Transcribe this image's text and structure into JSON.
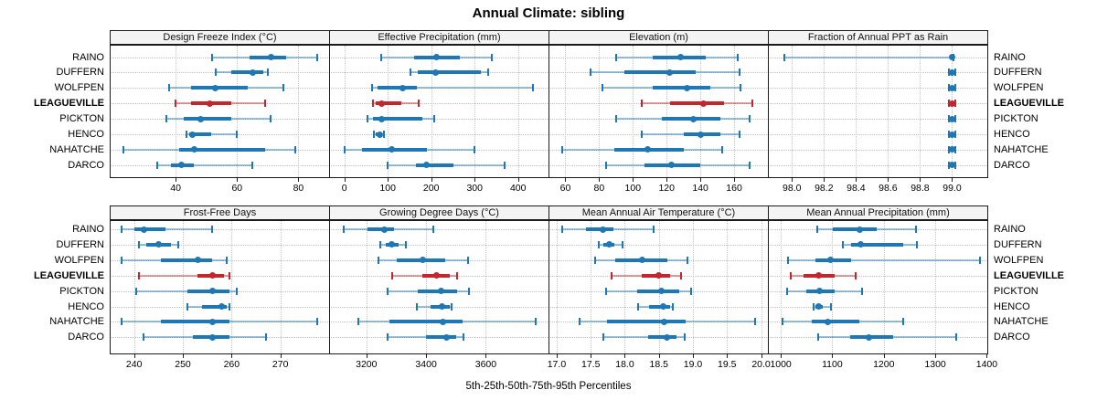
{
  "title": "Annual Climate: sibling",
  "xlabel": "5th-25th-50th-75th-95th Percentiles",
  "chart_data": {
    "type": "dotplot",
    "subtype": "trellis-percentile-whisker-plot",
    "title": "Annual Climate: sibling",
    "xlabel": "5th-25th-50th-75th-95th Percentiles",
    "percentile_levels": [
      5,
      25,
      50,
      75,
      95
    ],
    "legend_position": "none",
    "grid": "dotted gridlines at ticks and at each category row",
    "stations": [
      "RAINO",
      "DUFFERN",
      "WOLFPEN",
      "LEAGUEVILLE",
      "PICKTON",
      "HENCO",
      "NAHATCHE",
      "DARCO"
    ],
    "highlight_station": "LEAGUEVILLE",
    "colors": {
      "series": "#1f77b4",
      "series_whisker": "rgba(31,119,180,0.45)",
      "highlight": "#c0282d",
      "highlight_whisker": "rgba(192,40,45,0.45)",
      "strip_bg": "#f4f4f4",
      "grid": "#c0c0c0",
      "border": "#1a1a1a"
    },
    "panels": [
      {
        "title": "Design Freeze Index (°C)",
        "row": 0,
        "col": 0,
        "xlim": [
          18.5,
          90
        ],
        "tick_values": [
          40,
          60,
          80
        ],
        "tick_labels": [
          "40",
          "60",
          "80"
        ],
        "values": {
          "RAINO": [
            52,
            64,
            71,
            76,
            86
          ],
          "DUFFERN": [
            53,
            58,
            65,
            68.5,
            70
          ],
          "WOLFPEN": [
            38,
            45,
            53,
            63.5,
            75
          ],
          "LEAGUEVILLE": [
            40,
            45,
            51,
            58,
            69
          ],
          "PICKTON": [
            37,
            42.5,
            48,
            58,
            71
          ],
          "HENCO": [
            43.5,
            44.5,
            45.5,
            51.5,
            60
          ],
          "NAHATCHE": [
            23,
            41,
            46,
            69,
            79
          ],
          "DARCO": [
            34,
            38.5,
            42,
            46,
            65
          ]
        }
      },
      {
        "title": "Effective Precipitation (mm)",
        "row": 0,
        "col": 1,
        "xlim": [
          -35,
          470
        ],
        "tick_values": [
          0,
          100,
          200,
          300,
          400
        ],
        "tick_labels": [
          "0",
          "100",
          "200",
          "300",
          "400"
        ],
        "values": {
          "RAINO": [
            85,
            160,
            212,
            266,
            340
          ],
          "DUFFERN": [
            152,
            170,
            211,
            314,
            332
          ],
          "WOLFPEN": [
            63,
            77,
            135,
            168,
            435
          ],
          "LEAGUEVILLE": [
            66,
            72,
            87,
            132,
            172
          ],
          "PICKTON": [
            54,
            65,
            87,
            180,
            208
          ],
          "HENCO": [
            68,
            73,
            82,
            88,
            92
          ],
          "NAHATCHE": [
            0,
            40,
            110,
            190,
            300
          ],
          "DARCO": [
            99,
            165,
            189,
            251,
            368
          ]
        }
      },
      {
        "title": "Elevation (m)",
        "row": 0,
        "col": 2,
        "xlim": [
          50,
          180
        ],
        "tick_values": [
          60,
          80,
          100,
          120,
          140,
          160
        ],
        "tick_labels": [
          "60",
          "80",
          "100",
          "120",
          "140",
          "160"
        ],
        "values": {
          "RAINO": [
            90,
            112,
            128,
            143,
            162
          ],
          "DUFFERN": [
            75,
            95,
            122,
            137,
            163
          ],
          "WOLFPEN": [
            82,
            112,
            132,
            146,
            164
          ],
          "LEAGUEVILLE": [
            105,
            122,
            142,
            154,
            171
          ],
          "PICKTON": [
            90,
            117,
            136,
            152,
            169
          ],
          "HENCO": [
            105,
            130,
            140,
            152,
            163
          ],
          "NAHATCHE": [
            58,
            89,
            109,
            130,
            153
          ],
          "DARCO": [
            84,
            107,
            123,
            140,
            169
          ]
        }
      },
      {
        "title": "Fraction of Annual PPT as Rain",
        "row": 0,
        "col": 3,
        "xlim": [
          97.85,
          99.22
        ],
        "tick_values": [
          98.0,
          98.2,
          98.4,
          98.6,
          98.8,
          99.0
        ],
        "tick_labels": [
          "98.0",
          "98.2",
          "98.4",
          "98.6",
          "98.8",
          "99.0"
        ],
        "values": {
          "RAINO": [
            97.95,
            98.99,
            99,
            99,
            99.01
          ],
          "DUFFERN": [
            98.98,
            98.99,
            99,
            99.01,
            99.02
          ],
          "WOLFPEN": [
            98.98,
            98.99,
            99,
            99.01,
            99.02
          ],
          "LEAGUEVILLE": [
            98.98,
            98.99,
            99,
            99.01,
            99.02
          ],
          "PICKTON": [
            98.98,
            98.99,
            99,
            99.01,
            99.02
          ],
          "HENCO": [
            98.98,
            98.99,
            99,
            99.01,
            99.02
          ],
          "NAHATCHE": [
            98.98,
            98.99,
            99,
            99.01,
            99.02
          ],
          "DARCO": [
            98.98,
            98.99,
            99,
            99.01,
            99.02
          ]
        }
      },
      {
        "title": "Frost-Free Days",
        "row": 1,
        "col": 0,
        "xlim": [
          235,
          280
        ],
        "tick_values": [
          240,
          250,
          260,
          270
        ],
        "tick_labels": [
          "240",
          "250",
          "260",
          "270"
        ],
        "values": {
          "RAINO": [
            237.5,
            240,
            242,
            246.5,
            256
          ],
          "DUFFERN": [
            241,
            242.5,
            245,
            247.5,
            249
          ],
          "WOLFPEN": [
            237.5,
            245.5,
            253,
            256,
            259
          ],
          "LEAGUEVILLE": [
            241,
            253,
            256,
            258.5,
            259.5
          ],
          "PICKTON": [
            240.5,
            251,
            256,
            259.5,
            261
          ],
          "HENCO": [
            251,
            254,
            258,
            259,
            259.5
          ],
          "NAHATCHE": [
            237.5,
            245.5,
            256,
            259.5,
            277.5
          ],
          "DARCO": [
            242,
            252,
            256,
            259.5,
            267
          ]
        }
      },
      {
        "title": "Growing Degree Days (°C)",
        "row": 1,
        "col": 1,
        "xlim": [
          3075,
          3810
        ],
        "tick_values": [
          3200,
          3400,
          3600
        ],
        "tick_labels": [
          "3200",
          "3400",
          "3600"
        ],
        "values": {
          "RAINO": [
            3125,
            3203,
            3260,
            3292,
            3424
          ],
          "DUFFERN": [
            3247,
            3264,
            3284,
            3307,
            3333
          ],
          "WOLFPEN": [
            3240,
            3302,
            3388,
            3464,
            3540
          ],
          "LEAGUEVILLE": [
            3287,
            3388,
            3436,
            3479,
            3505
          ],
          "PICKTON": [
            3270,
            3373,
            3449,
            3505,
            3543
          ],
          "HENCO": [
            3368,
            3414,
            3452,
            3478,
            3486
          ],
          "NAHATCHE": [
            3173,
            3277,
            3456,
            3522,
            3768
          ],
          "DARCO": [
            3272,
            3401,
            3469,
            3500,
            3525
          ]
        }
      },
      {
        "title": "Mean Annual Air Temperature (°C)",
        "row": 1,
        "col": 2,
        "xlim": [
          16.88,
          20.1
        ],
        "tick_values": [
          17.0,
          17.5,
          18.0,
          18.5,
          19.0,
          19.5,
          20.0
        ],
        "tick_labels": [
          "17.0",
          "17.5",
          "18.0",
          "18.5",
          "19.0",
          "19.5",
          "20.0"
        ],
        "values": {
          "RAINO": [
            17.08,
            17.43,
            17.68,
            17.83,
            18.42
          ],
          "DUFFERN": [
            17.62,
            17.69,
            17.77,
            17.85,
            17.97
          ],
          "WOLFPEN": [
            17.56,
            17.86,
            18.26,
            18.62,
            18.92
          ],
          "LEAGUEVILLE": [
            17.8,
            18.25,
            18.49,
            18.67,
            18.82
          ],
          "PICKTON": [
            17.72,
            18.18,
            18.54,
            18.8,
            18.97
          ],
          "HENCO": [
            18.2,
            18.36,
            18.57,
            18.67,
            18.71
          ],
          "NAHATCHE": [
            17.33,
            17.74,
            18.58,
            18.89,
            19.91
          ],
          "DARCO": [
            17.69,
            18.34,
            18.62,
            18.76,
            18.88
          ]
        }
      },
      {
        "title": "Mean Annual Precipitation (mm)",
        "row": 1,
        "col": 3,
        "xlim": [
          975,
          1401
        ],
        "tick_values": [
          1000,
          1100,
          1200,
          1300,
          1400
        ],
        "tick_labels": [
          "1000",
          "1100",
          "1200",
          "1300",
          "1400"
        ],
        "values": {
          "RAINO": [
            1071,
            1101,
            1154,
            1187,
            1262
          ],
          "DUFFERN": [
            1121,
            1136,
            1155,
            1237,
            1265
          ],
          "WOLFPEN": [
            1014,
            1068,
            1096,
            1137,
            1387
          ],
          "LEAGUEVILLE": [
            1019,
            1044,
            1074,
            1104,
            1145
          ],
          "PICKTON": [
            1013,
            1049,
            1076,
            1104,
            1157
          ],
          "HENCO": [
            1063,
            1067,
            1073,
            1081,
            1098
          ],
          "NAHATCHE": [
            1004,
            1061,
            1091,
            1152,
            1237
          ],
          "DARCO": [
            1073,
            1134,
            1172,
            1219,
            1341
          ]
        }
      }
    ]
  }
}
